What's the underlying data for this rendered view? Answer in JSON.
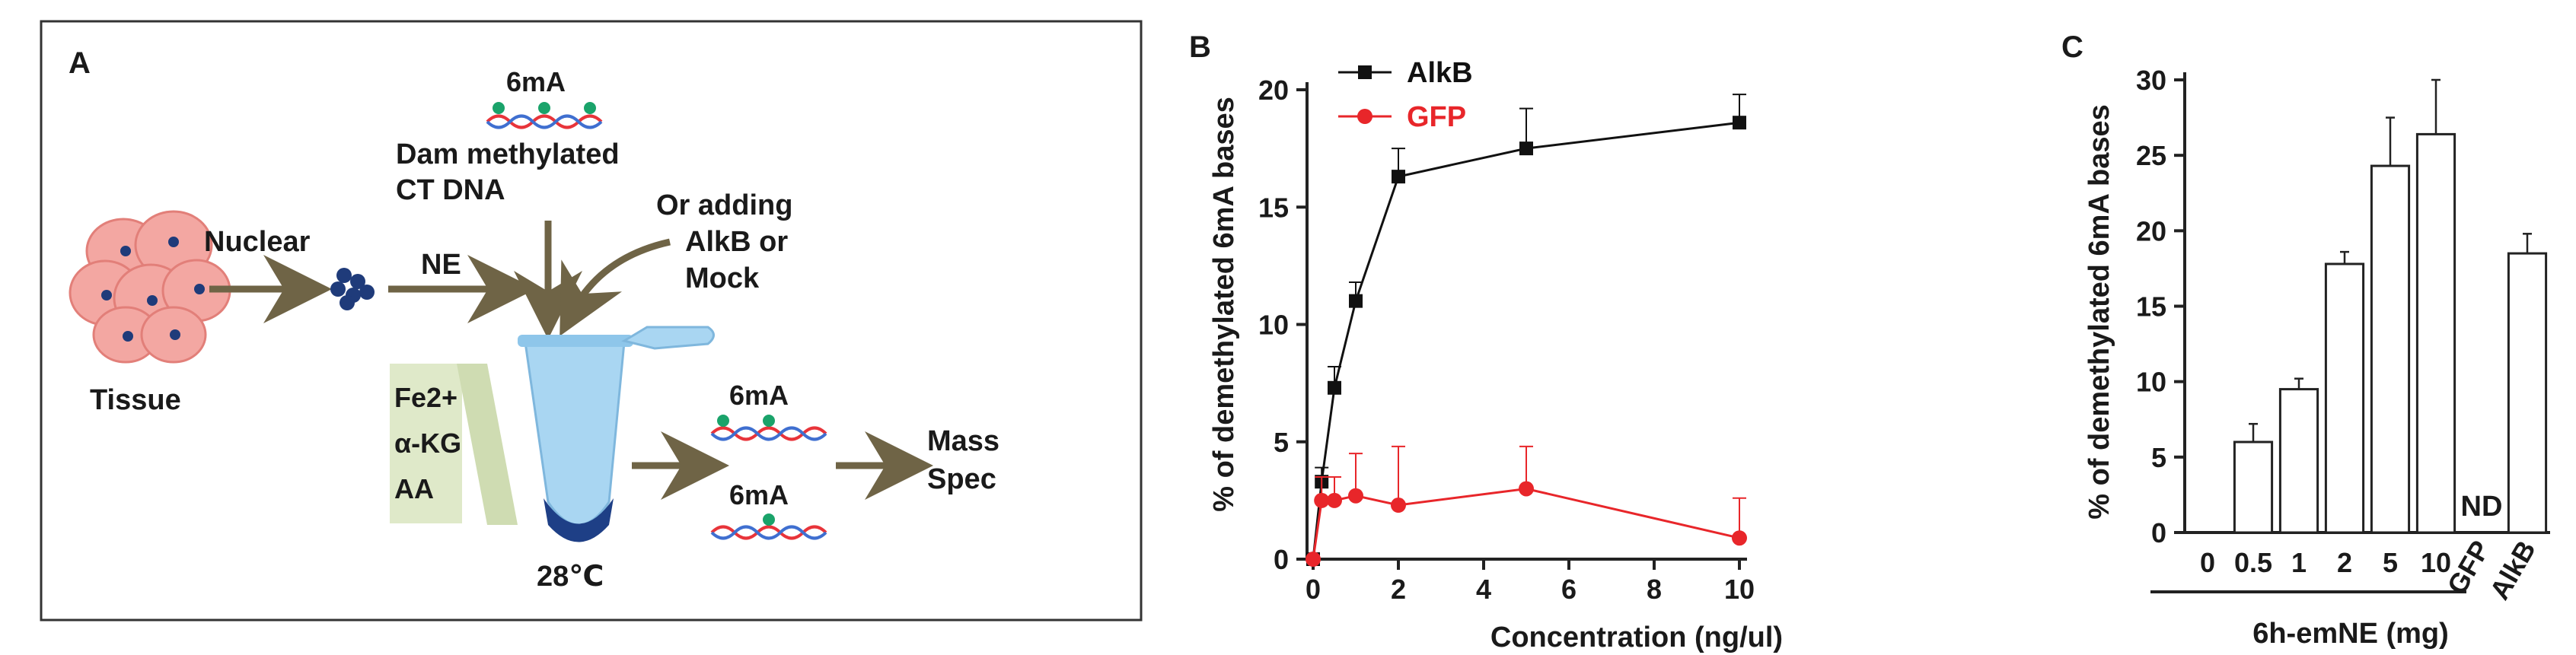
{
  "panel_a": {
    "letter": "A",
    "tissue_label": "Tissue",
    "nuclear_label": "Nuclear",
    "ne_label": "NE",
    "top_mod_label": "6mA",
    "dam_line1": "Dam methylated",
    "dam_line2": "CT DNA",
    "or_line1": "Or adding",
    "or_line2": "AlkB or",
    "or_line3": "Mock",
    "fe_label": "Fe2+",
    "akg_label": "α-KG",
    "aa_label": "AA",
    "temp_label": "28℃",
    "prod_label_1": "6mA",
    "prod_label_2": "6mA",
    "mass_line1": "Mass",
    "mass_line2": "Spec",
    "colors": {
      "cell": "#f3a7a2",
      "nucleus": "#1f3b7a",
      "arrow": "#6f6446",
      "tube": "#a9d6f2",
      "tube_tip": "#1e3f86",
      "reagent_box": "#dfe9c9",
      "dna_red": "#e8343a",
      "dna_blue": "#3f6fd0",
      "mod_dot": "#1aa36a"
    }
  },
  "panel_b": {
    "letter": "B",
    "chart_data": {
      "type": "line",
      "x": [
        0,
        0.2,
        0.5,
        1,
        2,
        5,
        10
      ],
      "series": [
        {
          "name": "AlkB",
          "color": "#111111",
          "marker": "square",
          "values": [
            0,
            3.3,
            7.3,
            11.0,
            16.3,
            17.5,
            18.6
          ],
          "errors": [
            0,
            0.6,
            0.9,
            0.8,
            1.2,
            1.7,
            1.2
          ]
        },
        {
          "name": "GFP",
          "color": "#e8262a",
          "marker": "circle",
          "values": [
            0,
            2.5,
            2.5,
            2.7,
            2.3,
            3.0,
            0.9
          ],
          "errors": [
            0,
            1.0,
            1.0,
            1.8,
            2.5,
            1.8,
            1.7
          ]
        }
      ],
      "xlabel": "Concentration (ng/ul)",
      "ylabel": "% of demethylated 6mA bases",
      "xlim": [
        0,
        10
      ],
      "ylim": [
        0,
        20
      ],
      "xticks": [
        "0",
        "2",
        "4",
        "6",
        "8",
        "10"
      ],
      "yticks": [
        "0",
        "5",
        "10",
        "15",
        "20"
      ],
      "legend": "top-left",
      "grid": false
    }
  },
  "panel_c": {
    "letter": "C",
    "chart_data": {
      "type": "bar",
      "categories": [
        "0",
        "0.5",
        "1",
        "2",
        "5",
        "10",
        "GFP",
        "AlkB"
      ],
      "values": [
        0,
        6.0,
        9.5,
        17.8,
        24.3,
        26.4,
        0,
        18.5
      ],
      "errors": [
        0,
        1.2,
        0.7,
        0.8,
        3.2,
        3.6,
        0,
        1.3
      ],
      "annotations": [
        {
          "category": "GFP",
          "text": "ND"
        }
      ],
      "xlabel": "6h-emNE (mg)",
      "ylabel": "% of demethylated 6mA bases",
      "ylim": [
        0,
        30
      ],
      "yticks": [
        "0",
        "5",
        "10",
        "15",
        "20",
        "25",
        "30"
      ],
      "grid": false
    }
  }
}
